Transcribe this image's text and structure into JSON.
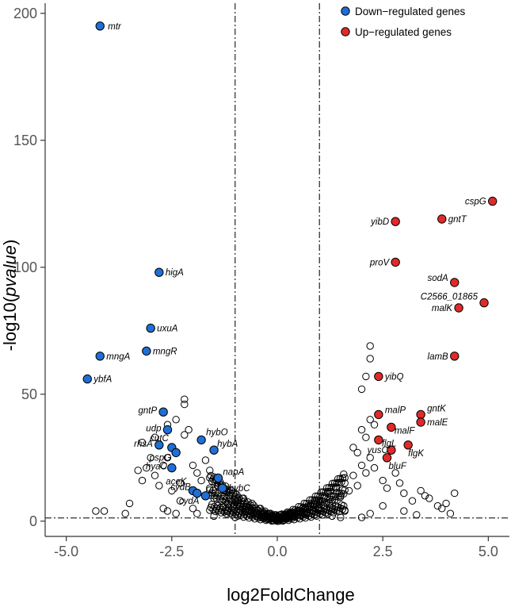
{
  "chart_data": {
    "type": "scatter",
    "title": "",
    "xlabel": "log2FoldChange",
    "ylabel_prefix": "-log10(",
    "ylabel_italic": "pvalue",
    "ylabel_suffix": ")",
    "xlim": [
      -5.5,
      5.5
    ],
    "ylim": [
      -6,
      204
    ],
    "xticks": [
      -5.0,
      -2.5,
      0.0,
      2.5,
      5.0
    ],
    "xtick_labels": [
      "-5.0",
      "-2.5",
      "0.0",
      "2.5",
      "5.0"
    ],
    "yticks": [
      0,
      50,
      100,
      150,
      200
    ],
    "ytick_labels": [
      "0",
      "50",
      "100",
      "150",
      "200"
    ],
    "grid": false,
    "legend_position": "top-right",
    "thresholds": {
      "x": [
        -1,
        1
      ],
      "y": 1.3
    },
    "colors": {
      "down": "#1f6fd4",
      "up": "#e02a2a",
      "ns": "#000000",
      "threshold": "#444444"
    },
    "legend": [
      {
        "label": "Down−regulated genes",
        "color": "#1f6fd4"
      },
      {
        "label": "Up−regulated genes",
        "color": "#e02a2a"
      }
    ],
    "series": [
      {
        "name": "Down−regulated genes",
        "points": [
          {
            "x": -4.2,
            "y": 195,
            "label": "mtr"
          },
          {
            "x": -2.8,
            "y": 98,
            "label": "higA"
          },
          {
            "x": -3.0,
            "y": 76,
            "label": "uxuA"
          },
          {
            "x": -3.1,
            "y": 67,
            "label": "mngR"
          },
          {
            "x": -4.2,
            "y": 65,
            "label": "mngA"
          },
          {
            "x": -4.5,
            "y": 56,
            "label": "ybfA"
          },
          {
            "x": -2.7,
            "y": 43,
            "label": "gntP"
          },
          {
            "x": -2.6,
            "y": 36,
            "label": "udp"
          },
          {
            "x": -2.8,
            "y": 30,
            "label": "rhsA"
          },
          {
            "x": -2.5,
            "y": 29,
            "label": "cutC"
          },
          {
            "x": -2.4,
            "y": 27,
            "label": "pspG"
          },
          {
            "x": -2.5,
            "y": 21,
            "label": "hyaC"
          },
          {
            "x": -1.8,
            "y": 32,
            "label": "hybO"
          },
          {
            "x": -1.5,
            "y": 28,
            "label": "hybA"
          },
          {
            "x": -1.4,
            "y": 17,
            "label": "napA"
          },
          {
            "x": -1.3,
            "y": 13,
            "label": "hybC"
          },
          {
            "x": -2.0,
            "y": 12,
            "label": "aceK"
          },
          {
            "x": -1.9,
            "y": 11,
            "label": "cydB"
          },
          {
            "x": -1.7,
            "y": 10,
            "label": "cydA"
          }
        ]
      },
      {
        "name": "Up−regulated genes",
        "points": [
          {
            "x": 5.1,
            "y": 126,
            "label": "cspG"
          },
          {
            "x": 3.9,
            "y": 119,
            "label": "gntT"
          },
          {
            "x": 2.8,
            "y": 118,
            "label": "yibD"
          },
          {
            "x": 2.8,
            "y": 102,
            "label": "proV"
          },
          {
            "x": 4.2,
            "y": 94,
            "label": "sodA"
          },
          {
            "x": 4.9,
            "y": 86,
            "label": "C2566_01865"
          },
          {
            "x": 4.3,
            "y": 84,
            "label": "malK"
          },
          {
            "x": 4.2,
            "y": 65,
            "label": "lamB"
          },
          {
            "x": 2.4,
            "y": 57,
            "label": "yibQ"
          },
          {
            "x": 3.4,
            "y": 42,
            "label": "gntK"
          },
          {
            "x": 2.4,
            "y": 42,
            "label": "malP"
          },
          {
            "x": 3.4,
            "y": 39,
            "label": "malE"
          },
          {
            "x": 2.7,
            "y": 37,
            "label": "malF"
          },
          {
            "x": 2.4,
            "y": 32,
            "label": "flgL"
          },
          {
            "x": 3.1,
            "y": 30,
            "label": "flgK"
          },
          {
            "x": 2.7,
            "y": 28,
            "label": "yusC"
          },
          {
            "x": 2.6,
            "y": 25,
            "label": "bluF"
          }
        ]
      },
      {
        "name": "",
        "points": [
          [
            2.2,
            69
          ],
          [
            2.2,
            64
          ],
          [
            2.1,
            57
          ],
          [
            2.0,
            52
          ],
          [
            -2.2,
            48
          ],
          [
            -2.2,
            46
          ],
          [
            -2.4,
            40
          ],
          [
            -2.6,
            38
          ],
          [
            -2.1,
            36
          ],
          [
            -2.2,
            34
          ],
          [
            -2.9,
            33
          ],
          [
            -3.2,
            31
          ],
          [
            -3.0,
            25
          ],
          [
            -3.1,
            21
          ],
          [
            -3.3,
            20
          ],
          [
            -2.9,
            18
          ],
          [
            -3.2,
            16
          ],
          [
            -2.8,
            14
          ],
          [
            -2.5,
            12
          ],
          [
            -2.3,
            15
          ],
          [
            -2.0,
            22
          ],
          [
            -1.9,
            19
          ],
          [
            -1.7,
            24
          ],
          [
            -1.6,
            20
          ],
          [
            -2.3,
            8
          ],
          [
            -3.5,
            7
          ],
          [
            -4.3,
            4
          ],
          [
            -4.1,
            4
          ],
          [
            -3.6,
            3
          ],
          [
            -2.7,
            5
          ],
          [
            -2.6,
            4
          ],
          [
            -2.4,
            3
          ],
          [
            -2.0,
            5
          ],
          [
            -1.9,
            3
          ],
          [
            -1.5,
            9
          ],
          [
            -1.3,
            6
          ],
          [
            -1.2,
            4
          ],
          [
            -1.1,
            8
          ],
          [
            -1.0,
            11
          ],
          [
            -0.9,
            6
          ],
          [
            -0.8,
            9
          ],
          [
            -0.7,
            4
          ],
          [
            -0.6,
            7
          ],
          [
            -0.5,
            3
          ],
          [
            -0.4,
            5
          ],
          [
            -0.3,
            2
          ],
          [
            -0.2,
            3
          ],
          [
            -0.1,
            1
          ],
          [
            0.0,
            0.5
          ],
          [
            0.1,
            1
          ],
          [
            0.2,
            2
          ],
          [
            0.3,
            3
          ],
          [
            0.4,
            2
          ],
          [
            0.5,
            4
          ],
          [
            0.6,
            5
          ],
          [
            0.7,
            3
          ],
          [
            0.8,
            6
          ],
          [
            0.9,
            8
          ],
          [
            1.0,
            5
          ],
          [
            1.1,
            9
          ],
          [
            1.2,
            11
          ],
          [
            1.3,
            7
          ],
          [
            1.4,
            13
          ],
          [
            1.5,
            10
          ],
          [
            1.6,
            15
          ],
          [
            1.7,
            12
          ],
          [
            1.8,
            18
          ],
          [
            1.9,
            14
          ],
          [
            2.0,
            22
          ],
          [
            2.1,
            19
          ],
          [
            2.2,
            25
          ],
          [
            2.3,
            21
          ],
          [
            2.0,
            36
          ],
          [
            2.1,
            33
          ],
          [
            2.3,
            38
          ],
          [
            2.2,
            40
          ],
          [
            1.8,
            29
          ],
          [
            1.9,
            27
          ],
          [
            2.5,
            16
          ],
          [
            2.6,
            13
          ],
          [
            2.8,
            19
          ],
          [
            2.9,
            15
          ],
          [
            3.0,
            11
          ],
          [
            3.2,
            8
          ],
          [
            3.4,
            12
          ],
          [
            3.6,
            9
          ],
          [
            3.8,
            6
          ],
          [
            3.9,
            5
          ],
          [
            4.0,
            7
          ],
          [
            4.2,
            11
          ],
          [
            3.5,
            10
          ],
          [
            3.0,
            4
          ],
          [
            2.5,
            6
          ],
          [
            2.2,
            3
          ],
          [
            1.6,
            4
          ],
          [
            1.3,
            2
          ],
          [
            -1.6,
            13
          ],
          [
            -1.8,
            16
          ],
          [
            -1.4,
            14
          ],
          [
            -1.2,
            12
          ],
          [
            -2.6,
            25
          ],
          [
            -2.7,
            22
          ],
          [
            -1.5,
            2
          ],
          [
            -1.0,
            1.5
          ],
          [
            1.5,
            1.5
          ],
          [
            2.0,
            1.5
          ],
          [
            3.3,
            2.5
          ],
          [
            4.1,
            3
          ]
        ]
      }
    ]
  }
}
